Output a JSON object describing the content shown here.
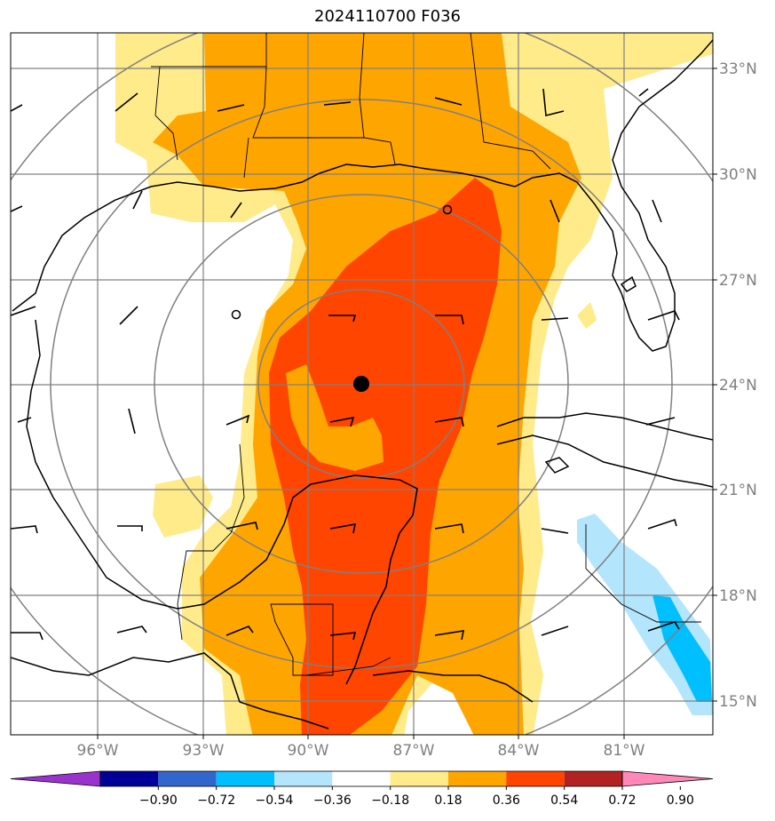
{
  "title": "2024110700 F036",
  "lat_labels": [
    "33°N",
    "30°N",
    "27°N",
    "24°N",
    "21°N",
    "18°N",
    "15°N"
  ],
  "lon_labels": [
    "96°W",
    "93°W",
    "90°W",
    "87°W",
    "84°W",
    "81°W"
  ],
  "colorbar": {
    "colors": [
      "#9933cc",
      "#000099",
      "#3366cc",
      "#00bfff",
      "#b3e5fc",
      "#ffffff",
      "#ffeb8a",
      "#ffa500",
      "#ff4500",
      "#b22222",
      "#ff88b8"
    ],
    "labels": [
      "−0.90",
      "−0.72",
      "−0.54",
      "−0.36",
      "−0.18",
      "0.18",
      "0.36",
      "0.54",
      "0.72",
      "0.90"
    ]
  },
  "colors": {
    "light_yellow": "#ffeb8a",
    "orange": "#ffa500",
    "red_orange": "#ff4500",
    "light_blue": "#b3e5fc",
    "blue": "#00bfff",
    "grid": "#808080"
  }
}
